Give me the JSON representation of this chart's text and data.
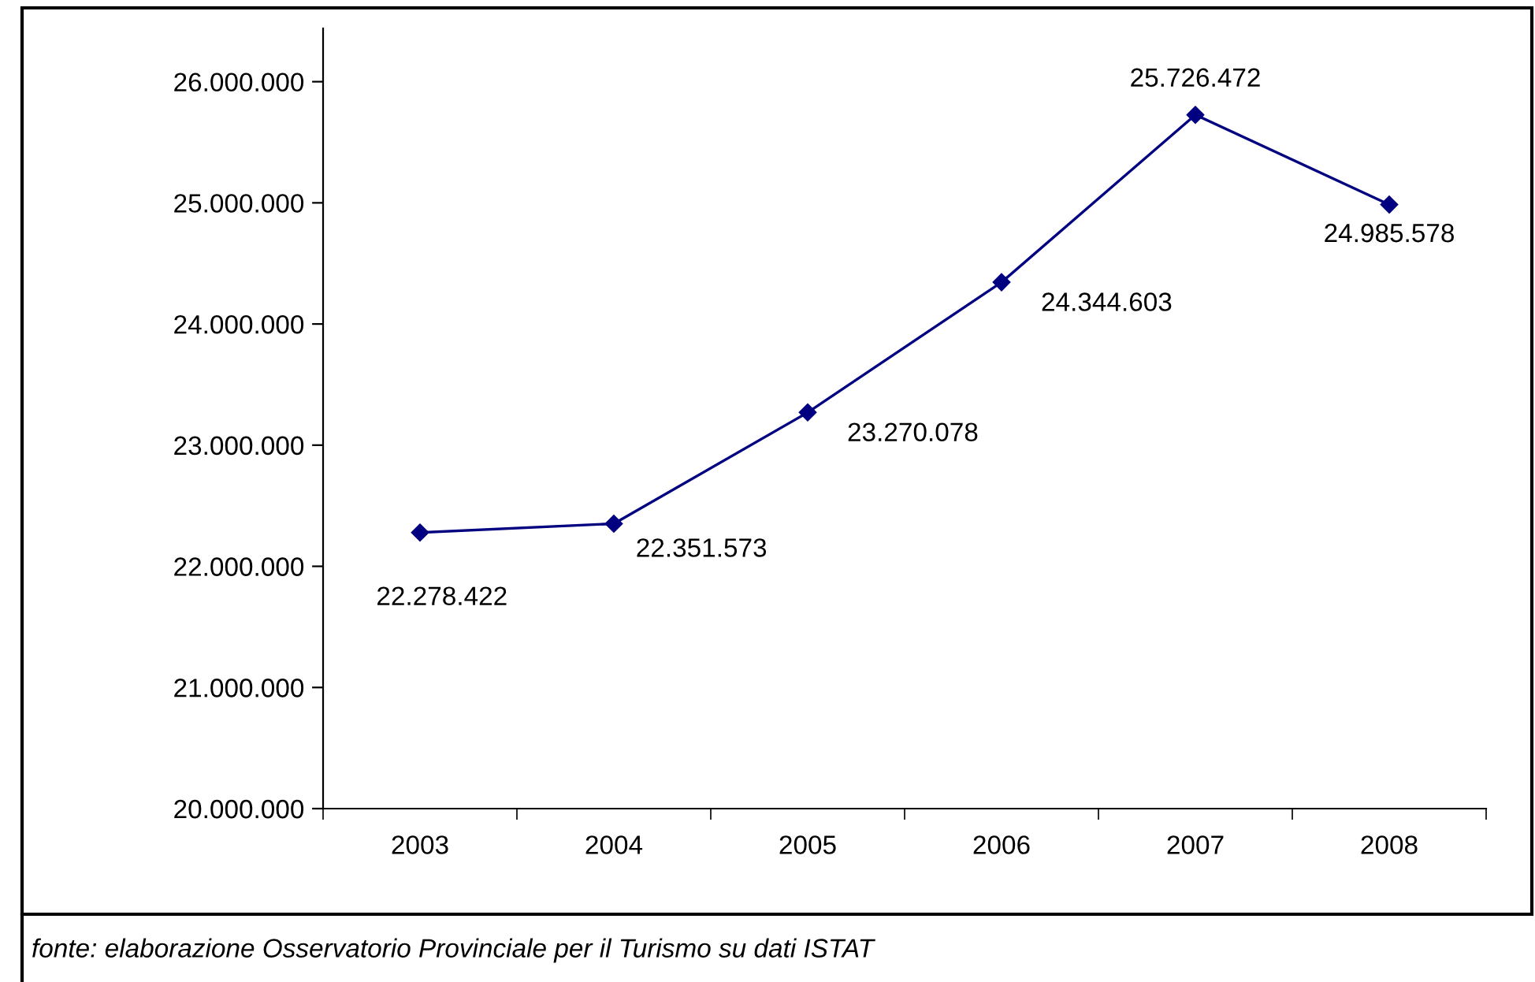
{
  "chart_data": {
    "type": "line",
    "categories": [
      "2003",
      "2004",
      "2005",
      "2006",
      "2007",
      "2008"
    ],
    "values": [
      22278422,
      22351573,
      23270078,
      24344603,
      25726472,
      24985578
    ],
    "value_labels": [
      "22.278.422",
      "22.351.573",
      "23.270.078",
      "24.344.603",
      "25.726.472",
      "24.985.578"
    ],
    "color": "#000080",
    "marker": "diamond",
    "line_style": "solid",
    "grid": false,
    "legend": false,
    "ylim": [
      20000000,
      26440000
    ],
    "yticks": [
      {
        "value": 20000000,
        "label": "20.000.000"
      },
      {
        "value": 21000000,
        "label": "21.000.000"
      },
      {
        "value": 22000000,
        "label": "22.000.000"
      },
      {
        "value": 23000000,
        "label": "23.000.000"
      },
      {
        "value": 24000000,
        "label": "24.000.000"
      },
      {
        "value": 25000000,
        "label": "25.000.000"
      },
      {
        "value": 26000000,
        "label": "26.000.000"
      }
    ],
    "annotations": [
      "fonte: elaborazione Osservatorio Provinciale per il Turismo su dati ISTAT"
    ]
  }
}
